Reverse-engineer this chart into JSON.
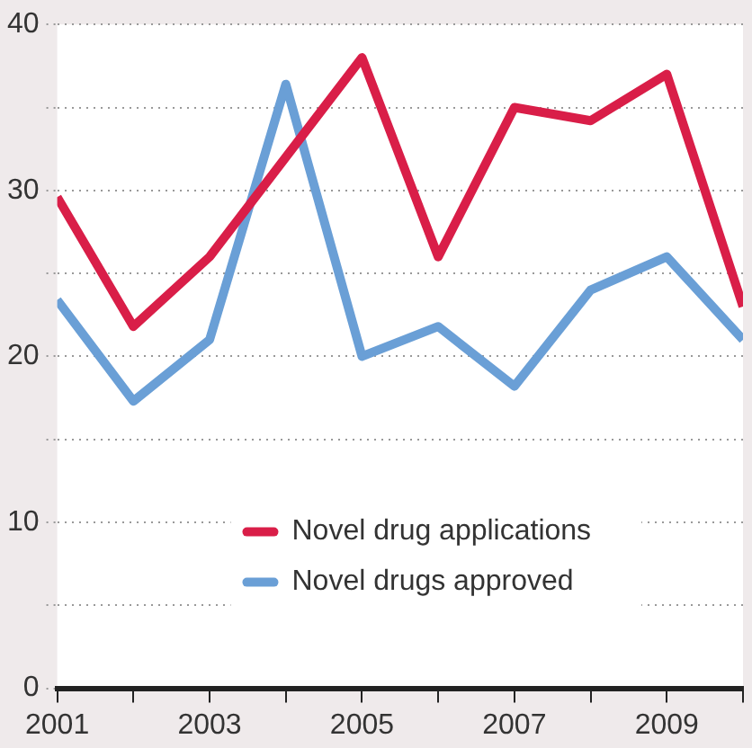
{
  "chart_data": {
    "type": "line",
    "x": [
      2001,
      2002,
      2003,
      2004,
      2005,
      2006,
      2007,
      2008,
      2009,
      2010
    ],
    "series": [
      {
        "name": "Novel drug applications",
        "color": "#d91e48",
        "values": [
          29.6,
          21.8,
          26,
          32,
          38,
          26,
          35,
          34.2,
          37,
          23
        ]
      },
      {
        "name": "Novel drugs approved",
        "color": "#6a9fd6",
        "values": [
          23.4,
          17.3,
          21,
          36.4,
          20,
          21.8,
          18.2,
          24,
          26,
          21
        ]
      }
    ],
    "xlim": [
      2001,
      2010
    ],
    "xticks": [
      2001,
      {
        "value": 2002,
        "label": null
      },
      2003,
      {
        "value": 2004,
        "label": null
      },
      2005,
      {
        "value": 2006,
        "label": null
      },
      2007,
      {
        "value": 2008,
        "label": null
      },
      2009,
      {
        "value": 2010,
        "label": null
      }
    ],
    "ylim": [
      0,
      40
    ],
    "yticks": [
      0,
      {
        "value": 5,
        "label": null
      },
      10,
      {
        "value": 15,
        "label": null
      },
      20,
      {
        "value": 25,
        "label": null
      },
      30,
      {
        "value": 35,
        "label": null
      },
      40
    ],
    "grid": "y",
    "legend": "bottom",
    "marker": "none",
    "line_style": "solid"
  }
}
